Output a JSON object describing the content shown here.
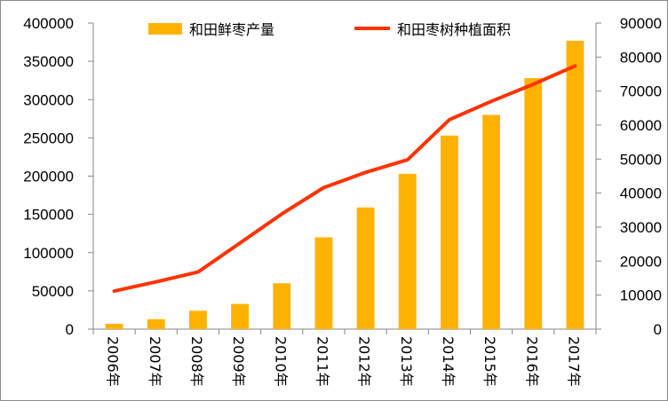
{
  "chart_data": {
    "type": "bar",
    "categories": [
      "2006年",
      "2007年",
      "2008年",
      "2009年",
      "2010年",
      "2011年",
      "2012年",
      "2013年",
      "2014年",
      "2015年",
      "2016年",
      "2017年"
    ],
    "series": [
      {
        "name": "和田鲜枣产量",
        "type": "bar",
        "axis": "left",
        "color": "#FFB300",
        "values": [
          7000,
          13000,
          24000,
          33000,
          60000,
          120000,
          159000,
          203000,
          253000,
          280000,
          328000,
          377000
        ]
      },
      {
        "name": "和田枣树种植面积",
        "type": "line",
        "axis": "right",
        "color": "#FF3300",
        "values": [
          11200,
          13900,
          16800,
          25300,
          33900,
          41600,
          46100,
          49800,
          61600,
          67000,
          72000,
          77400
        ]
      }
    ],
    "y_left": {
      "min": 0,
      "max": 400000,
      "ticks": [
        0,
        50000,
        100000,
        150000,
        200000,
        250000,
        300000,
        350000,
        400000
      ],
      "tick_labels": [
        "0",
        "50000",
        "100000",
        "150000",
        "200000",
        "250000",
        "300000",
        "350000",
        "400000"
      ]
    },
    "y_right": {
      "min": 0,
      "max": 90000,
      "ticks": [
        0,
        10000,
        20000,
        30000,
        40000,
        50000,
        60000,
        70000,
        80000,
        90000
      ],
      "tick_labels": [
        "0",
        "10000",
        "20000",
        "30000",
        "40000",
        "50000",
        "60000",
        "70000",
        "80000",
        "90000"
      ]
    },
    "title": "",
    "xlabel": "",
    "grid": false,
    "legend_position": "top"
  }
}
